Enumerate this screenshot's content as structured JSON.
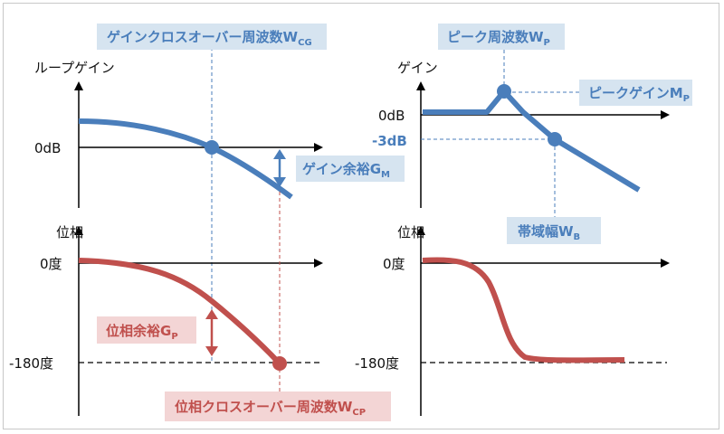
{
  "colors": {
    "blue": "#4a7ebb",
    "red": "#c0504d",
    "blue_box": "#d6e4f0",
    "red_box": "#f3d5d5",
    "axis": "#000000"
  },
  "left_gain": {
    "y_label": "ループゲイン",
    "zero_label": "0dB",
    "crossover_label": {
      "main": "ゲインクロスオーバー周波数W",
      "sub": "CG"
    },
    "margin_label": {
      "main": "ゲイン余裕G",
      "sub": "M"
    }
  },
  "left_phase": {
    "y_label": "位相",
    "zero_label": "0度",
    "neg180_label": "-180度",
    "margin_label": {
      "main": "位相余裕G",
      "sub": "P"
    },
    "crossover_label": {
      "main": "位相クロスオーバー周波数W",
      "sub": "CP"
    }
  },
  "right_gain": {
    "y_label": "ゲイン",
    "zero_label": "0dB",
    "minus3_label": "-3dB",
    "peak_freq_label": {
      "main": "ピーク周波数W",
      "sub": "P"
    },
    "peak_gain_label": {
      "main": "ピークゲインM",
      "sub": "P"
    },
    "bandwidth_label": {
      "main": "帯域幅W",
      "sub": "B"
    }
  },
  "right_phase": {
    "y_label": "位相",
    "zero_label": "0度",
    "neg180_label": "-180度"
  }
}
